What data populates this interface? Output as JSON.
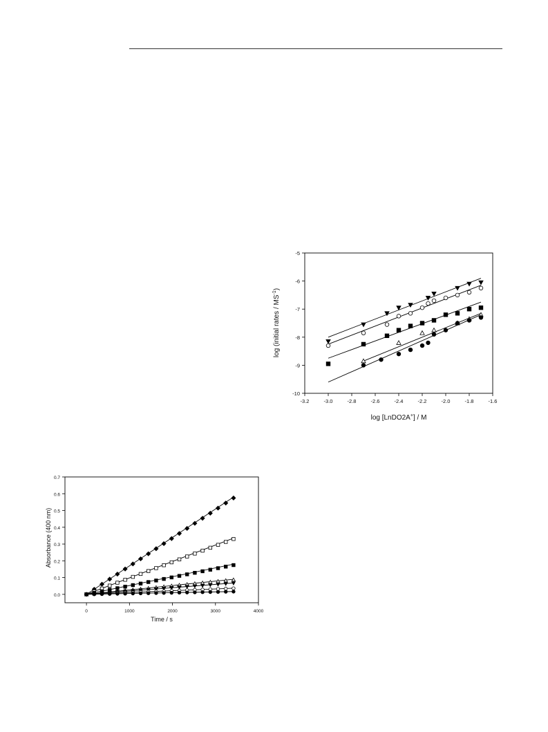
{
  "chart_data": [
    {
      "type": "scatter",
      "xlabel": "log [LnDO2A",
      "xlabel_sup": "+",
      "xlabel_suffix": "] / M",
      "ylabel": "log (initial rates / MS",
      "ylabel_sup": "-1",
      "ylabel_suffix": ")",
      "xlim": [
        -3.2,
        -1.6
      ],
      "ylim": [
        -10,
        -5
      ],
      "xticks": [
        -3.2,
        -3.0,
        -2.8,
        -2.6,
        -2.4,
        -2.2,
        -2.0,
        -1.8,
        -1.6
      ],
      "xtick_labels": [
        "-3.2",
        "-3.0",
        "-2.8",
        "-2.6",
        "-2.4",
        "-2.2",
        "-2.0",
        "-1.8",
        "-1.6"
      ],
      "yticks": [
        -10,
        -9,
        -8,
        -7,
        -6,
        -5
      ],
      "ytick_labels": [
        "-10",
        "-9",
        "-8",
        "-7",
        "-6",
        "-5"
      ],
      "grid": false,
      "series": [
        {
          "marker": "triangle-down-filled",
          "x": [
            -3.0,
            -2.7,
            -2.5,
            -2.4,
            -2.3,
            -2.15,
            -2.1,
            -1.9,
            -1.8,
            -1.7
          ],
          "y": [
            -8.15,
            -7.55,
            -7.15,
            -6.95,
            -6.85,
            -6.6,
            -6.45,
            -6.25,
            -6.1,
            -6.05
          ],
          "fit": [
            [
              -3.0,
              -8.0
            ],
            [
              -1.7,
              -5.9
            ]
          ]
        },
        {
          "marker": "circle-open",
          "x": [
            -3.0,
            -2.7,
            -2.5,
            -2.4,
            -2.3,
            -2.2,
            -2.15,
            -2.1,
            -2.0,
            -1.9,
            -1.8,
            -1.7
          ],
          "y": [
            -8.3,
            -7.85,
            -7.55,
            -7.25,
            -7.15,
            -6.95,
            -6.8,
            -6.7,
            -6.6,
            -6.5,
            -6.4,
            -6.25
          ],
          "fit": [
            [
              -3.0,
              -8.25
            ],
            [
              -1.7,
              -6.15
            ]
          ]
        },
        {
          "marker": "square-filled",
          "x": [
            -3.0,
            -2.7,
            -2.5,
            -2.4,
            -2.3,
            -2.2,
            -2.1,
            -2.0,
            -1.9,
            -1.8,
            -1.7
          ],
          "y": [
            -8.95,
            -8.25,
            -7.95,
            -7.75,
            -7.6,
            -7.5,
            -7.4,
            -7.2,
            -7.15,
            -7.0,
            -6.95
          ],
          "fit": [
            [
              -3.0,
              -8.75
            ],
            [
              -1.7,
              -6.75
            ]
          ]
        },
        {
          "marker": "triangle-up-open",
          "x": [
            -2.7,
            -2.4,
            -2.2,
            -2.1,
            -1.9,
            -1.8,
            -1.7
          ],
          "y": [
            -8.85,
            -8.2,
            -7.85,
            -7.75,
            -7.5,
            -7.35,
            -7.2
          ],
          "fit": [
            [
              -2.7,
              -8.85
            ],
            [
              -1.7,
              -7.15
            ]
          ]
        },
        {
          "marker": "circle-filled",
          "x": [
            -2.7,
            -2.55,
            -2.4,
            -2.3,
            -2.2,
            -2.15,
            -2.1,
            -2.0,
            -1.9,
            -1.8,
            -1.7
          ],
          "y": [
            -9.0,
            -8.8,
            -8.6,
            -8.45,
            -8.3,
            -8.2,
            -7.9,
            -7.75,
            -7.5,
            -7.4,
            -7.3
          ],
          "fit": [
            [
              -3.0,
              -9.6
            ],
            [
              -1.7,
              -7.2
            ]
          ]
        }
      ]
    },
    {
      "type": "scatter",
      "xlabel": "Time / s",
      "ylabel": "Absorbance  (400 nm)",
      "xlim": [
        -500,
        4000
      ],
      "ylim": [
        -0.05,
        0.7
      ],
      "xticks": [
        0,
        1000,
        2000,
        3000,
        4000
      ],
      "xtick_labels": [
        "0",
        "1000",
        "2000",
        "3000",
        "4000"
      ],
      "yticks": [
        0.0,
        0.1,
        0.2,
        0.3,
        0.4,
        0.5,
        0.6,
        0.7
      ],
      "ytick_labels": [
        "0.0",
        "0.1",
        "0.2",
        "0.3",
        "0.4",
        "0.5",
        "0.6",
        "0.7"
      ],
      "grid": false,
      "time_points": {
        "start": 0,
        "step": 180,
        "count": 20
      },
      "series": [
        {
          "marker": "diamond-filled",
          "slope": 0.000168,
          "end": 0.58
        },
        {
          "marker": "square-open",
          "slope": 9.65e-05,
          "end": 0.335
        },
        {
          "marker": "square-filled",
          "slope": 5.1e-05,
          "end": 0.18
        },
        {
          "marker": "triangle-up-open",
          "slope": 2.55e-05,
          "end": 0.09
        },
        {
          "marker": "triangle-down-filled",
          "slope": 1.95e-05,
          "end": 0.068
        },
        {
          "marker": "circle-open",
          "slope": 1.05e-05,
          "end": 0.037
        },
        {
          "marker": "circle-filled",
          "slope": 4.8e-06,
          "end": 0.017
        }
      ]
    }
  ]
}
